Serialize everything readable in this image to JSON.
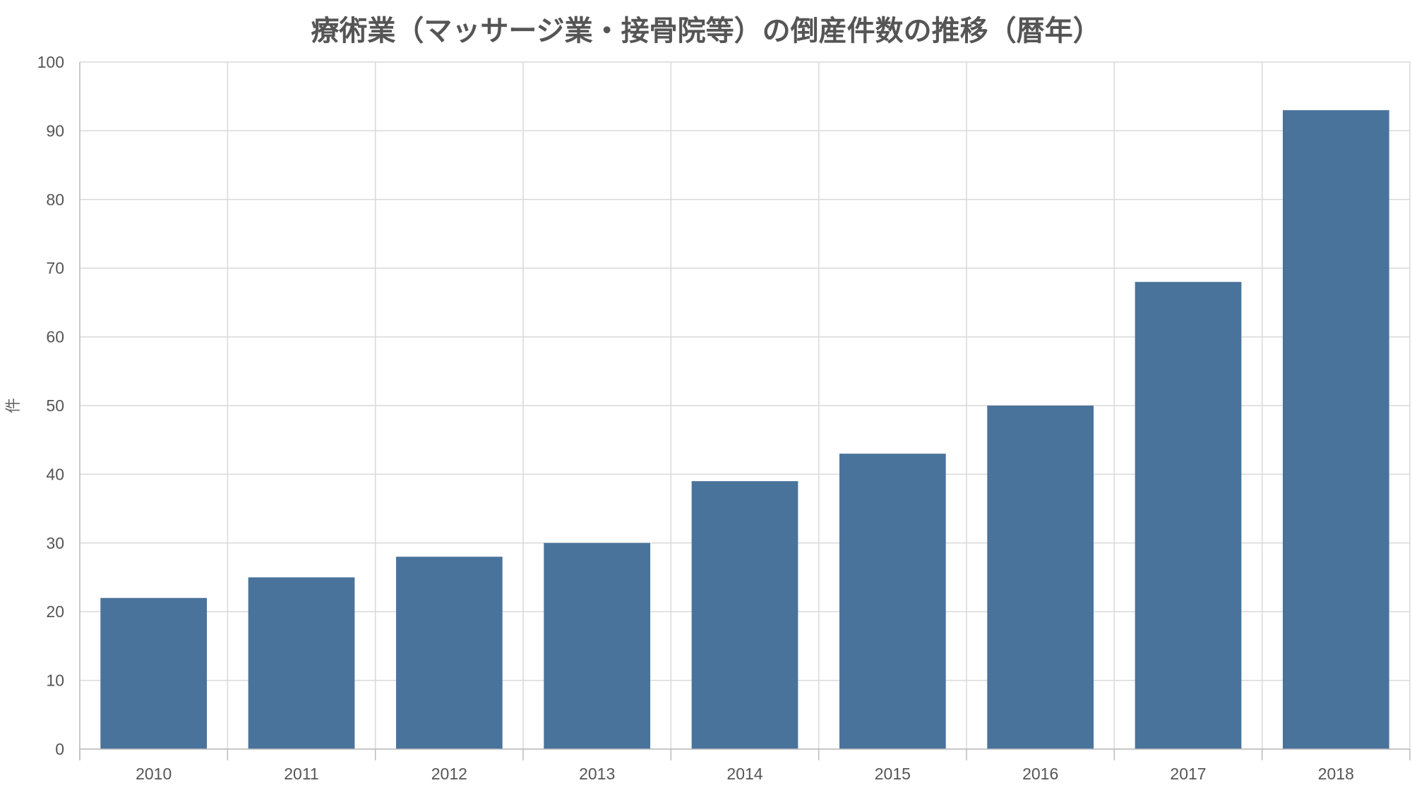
{
  "chart_data": {
    "type": "bar",
    "title": "療術業（マッサージ業・接骨院等）の倒産件数の推移（暦年）",
    "xlabel": "",
    "ylabel": "件",
    "categories": [
      "2010",
      "2011",
      "2012",
      "2013",
      "2014",
      "2015",
      "2016",
      "2017",
      "2018"
    ],
    "values": [
      22,
      25,
      28,
      30,
      39,
      43,
      50,
      68,
      93
    ],
    "ylim": [
      0,
      100
    ],
    "yticks": [
      0,
      10,
      20,
      30,
      40,
      50,
      60,
      70,
      80,
      90,
      100
    ],
    "grid": true,
    "legend": "none",
    "bar_color": "#4a739c"
  }
}
